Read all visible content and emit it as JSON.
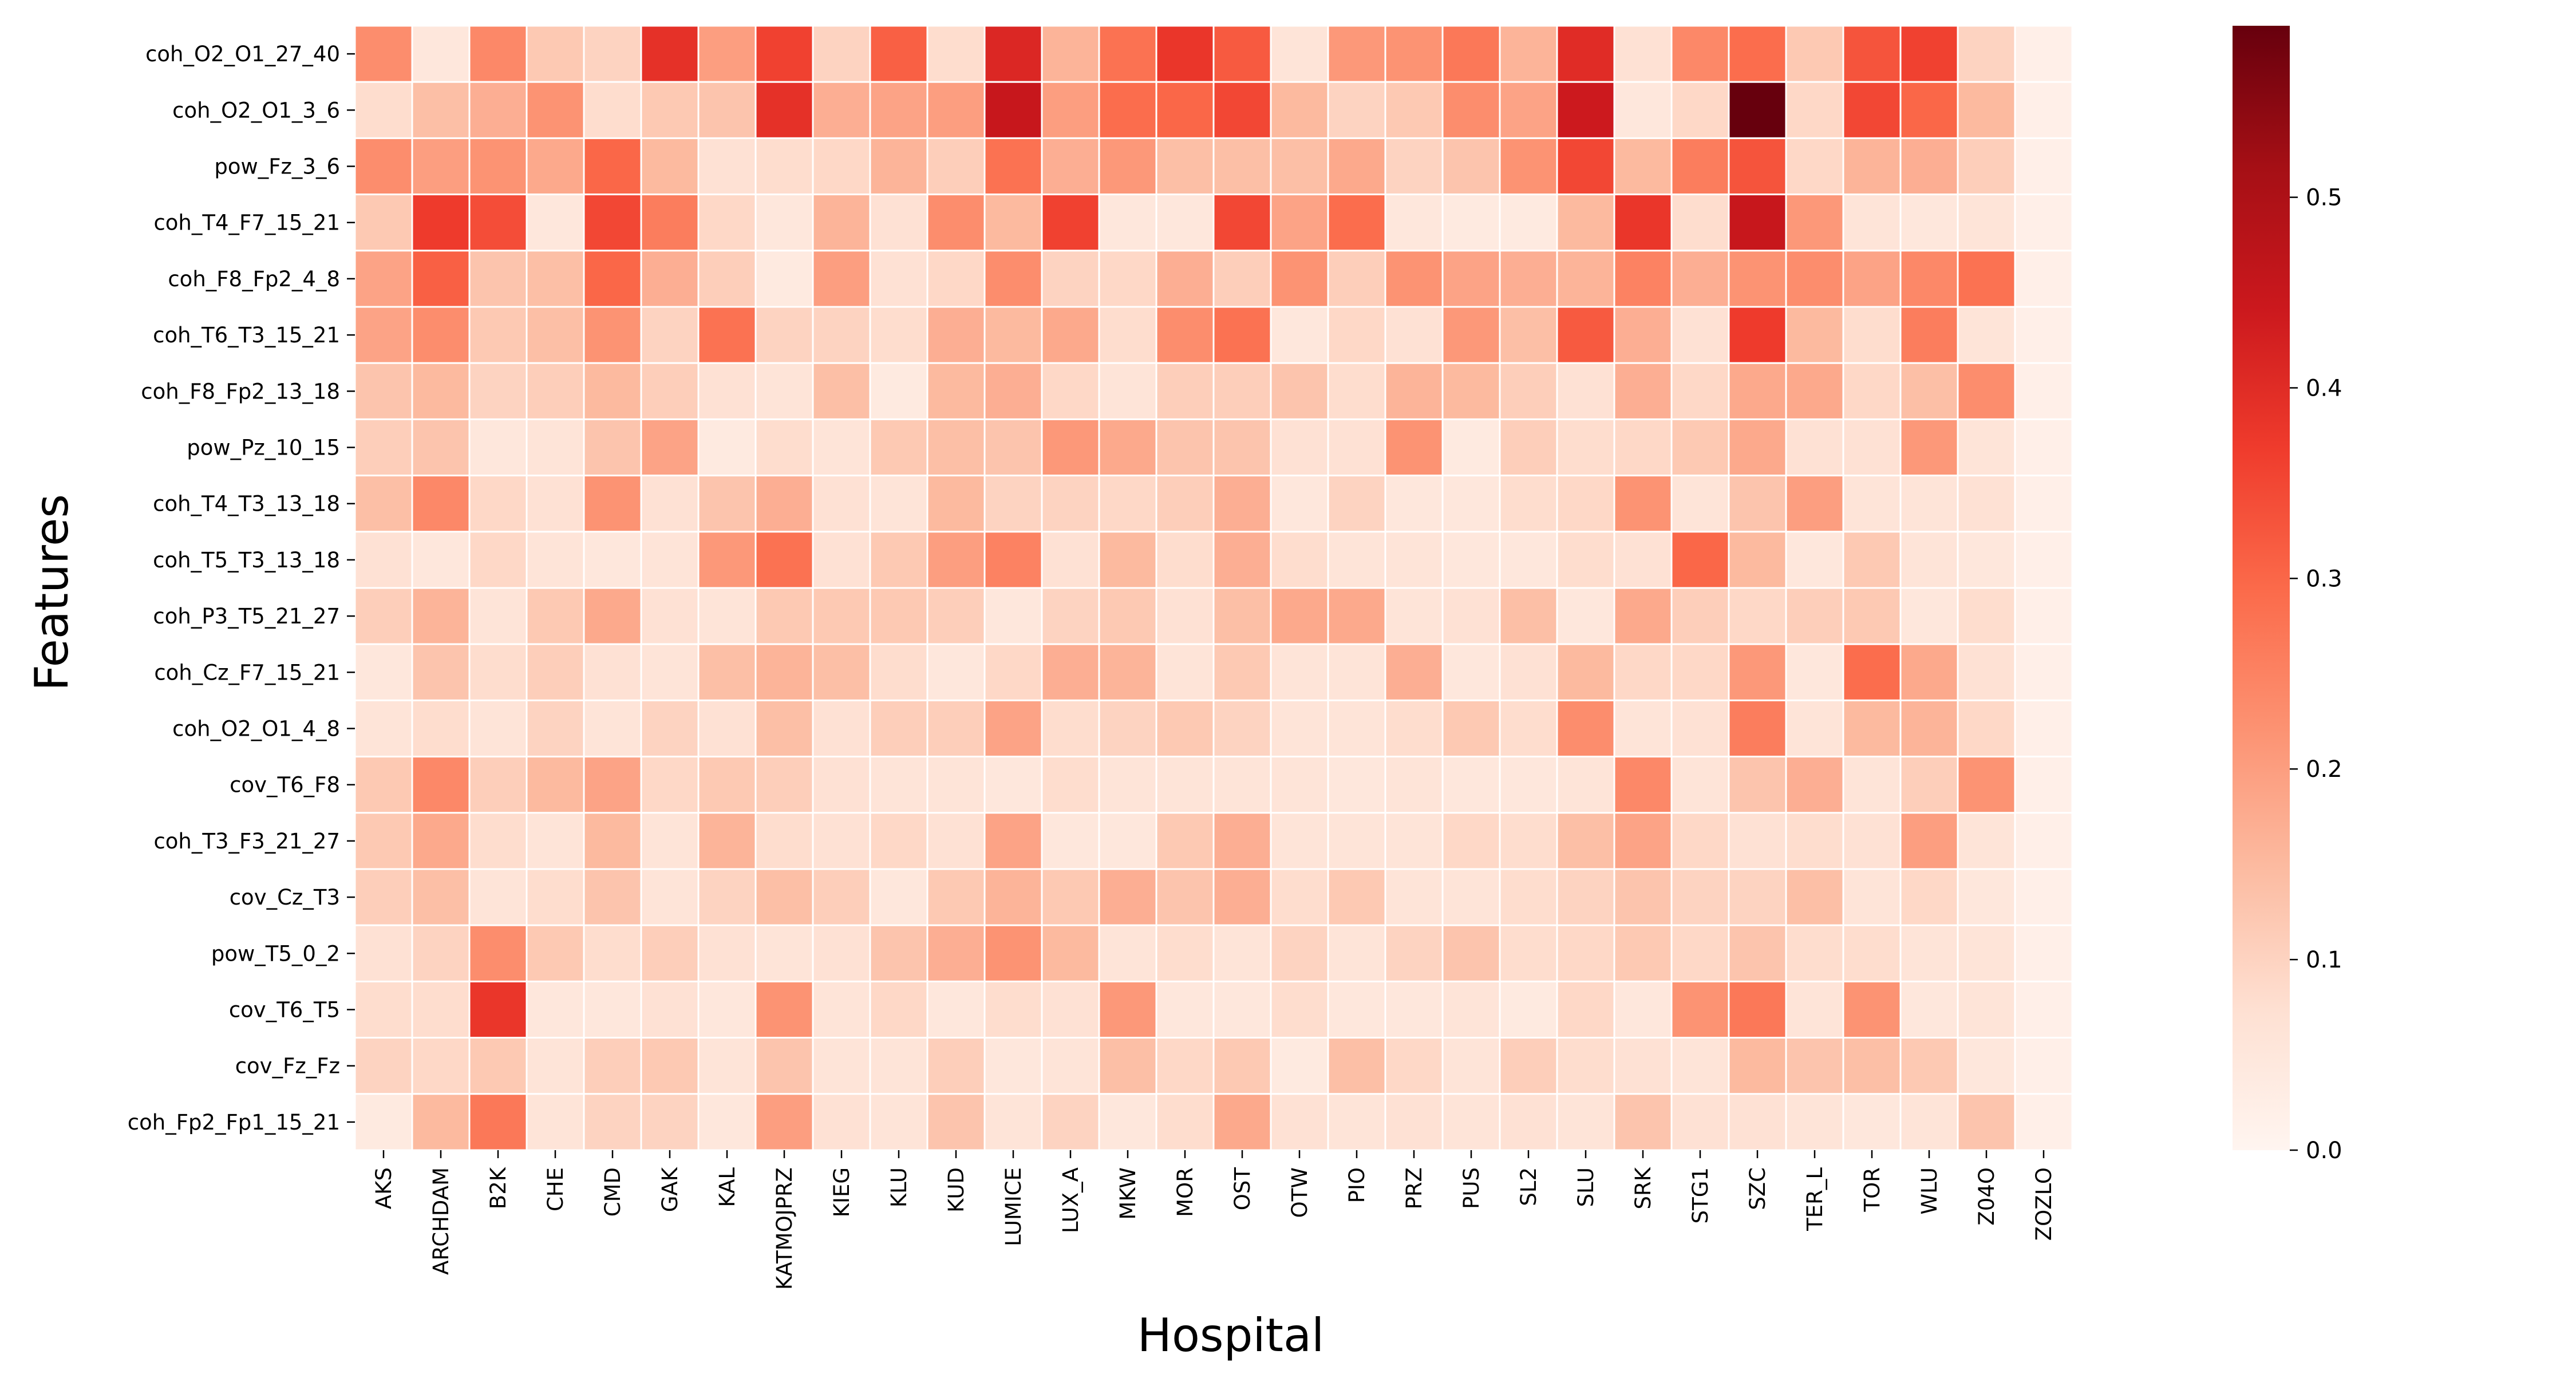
{
  "chart_data": {
    "type": "heatmap",
    "xlabel": "Hospital",
    "ylabel": "Features",
    "colormap": "Reds",
    "vmin": 0,
    "vmax": 0.59,
    "colorbar_ticks": [
      0.0,
      0.1,
      0.2,
      0.3,
      0.4,
      0.5
    ],
    "colorbar_tick_labels": [
      "0.0",
      "0.1",
      "0.2",
      "0.3",
      "0.4",
      "0.5"
    ],
    "x_categories": [
      "AKS",
      "ARCHDAM",
      "B2K",
      "CHE",
      "CMD",
      "GAK",
      "KAL",
      "KATMOJPRZ",
      "KIEG",
      "KLU",
      "KUD",
      "LUMICE",
      "LUX_A",
      "MKW",
      "MOR",
      "OST",
      "OTW",
      "PIO",
      "PRZ",
      "PUS",
      "SL2",
      "SLU",
      "SRK",
      "STG1",
      "SZC",
      "TER_L",
      "TOR",
      "WLU",
      "Z04O",
      "ZOZLO"
    ],
    "y_categories": [
      "coh_O2_O1_27_40",
      "coh_O2_O1_3_6",
      "pow_Fz_3_6",
      "coh_T4_F7_15_21",
      "coh_F8_Fp2_4_8",
      "coh_T6_T3_15_21",
      "coh_F8_Fp2_13_18",
      "pow_Pz_10_15",
      "coh_T4_T3_13_18",
      "coh_T5_T3_13_18",
      "coh_P3_T5_21_27",
      "coh_Cz_F7_15_21",
      "coh_O2_O1_4_8",
      "cov_T6_F8",
      "coh_T3_F3_21_27",
      "cov_Cz_T3",
      "pow_T5_0_2",
      "cov_T6_T5",
      "cov_Fz_Fz",
      "coh_Fp2_Fp1_15_21"
    ],
    "values": [
      [
        0.23,
        0.05,
        0.24,
        0.12,
        0.1,
        0.39,
        0.2,
        0.36,
        0.1,
        0.31,
        0.08,
        0.41,
        0.16,
        0.28,
        0.38,
        0.32,
        0.06,
        0.21,
        0.22,
        0.27,
        0.16,
        0.4,
        0.07,
        0.24,
        0.29,
        0.12,
        0.33,
        0.36,
        0.1,
        0.02
      ],
      [
        0.08,
        0.14,
        0.17,
        0.22,
        0.08,
        0.12,
        0.13,
        0.39,
        0.17,
        0.19,
        0.2,
        0.45,
        0.2,
        0.29,
        0.3,
        0.35,
        0.15,
        0.1,
        0.12,
        0.23,
        0.19,
        0.44,
        0.05,
        0.09,
        0.59,
        0.09,
        0.35,
        0.3,
        0.15,
        0.02
      ],
      [
        0.23,
        0.2,
        0.22,
        0.18,
        0.3,
        0.15,
        0.07,
        0.08,
        0.09,
        0.16,
        0.11,
        0.28,
        0.17,
        0.21,
        0.14,
        0.14,
        0.14,
        0.18,
        0.1,
        0.13,
        0.22,
        0.35,
        0.15,
        0.26,
        0.33,
        0.09,
        0.16,
        0.17,
        0.11,
        0.02
      ],
      [
        0.12,
        0.37,
        0.34,
        0.05,
        0.35,
        0.26,
        0.09,
        0.05,
        0.16,
        0.07,
        0.23,
        0.15,
        0.36,
        0.05,
        0.05,
        0.35,
        0.19,
        0.29,
        0.05,
        0.04,
        0.04,
        0.15,
        0.38,
        0.08,
        0.45,
        0.21,
        0.06,
        0.05,
        0.06,
        0.02
      ],
      [
        0.19,
        0.31,
        0.13,
        0.14,
        0.3,
        0.17,
        0.11,
        0.04,
        0.2,
        0.07,
        0.09,
        0.23,
        0.1,
        0.09,
        0.17,
        0.11,
        0.22,
        0.11,
        0.22,
        0.19,
        0.17,
        0.16,
        0.25,
        0.17,
        0.22,
        0.23,
        0.19,
        0.24,
        0.28,
        0.02
      ],
      [
        0.19,
        0.23,
        0.12,
        0.14,
        0.22,
        0.1,
        0.28,
        0.1,
        0.1,
        0.08,
        0.17,
        0.15,
        0.18,
        0.08,
        0.23,
        0.28,
        0.05,
        0.09,
        0.07,
        0.21,
        0.14,
        0.32,
        0.17,
        0.07,
        0.37,
        0.15,
        0.08,
        0.26,
        0.06,
        0.02
      ],
      [
        0.13,
        0.15,
        0.1,
        0.11,
        0.15,
        0.11,
        0.07,
        0.06,
        0.14,
        0.04,
        0.15,
        0.17,
        0.09,
        0.06,
        0.11,
        0.11,
        0.13,
        0.08,
        0.16,
        0.15,
        0.11,
        0.07,
        0.17,
        0.09,
        0.18,
        0.18,
        0.09,
        0.14,
        0.23,
        0.02
      ],
      [
        0.11,
        0.13,
        0.05,
        0.06,
        0.13,
        0.19,
        0.04,
        0.08,
        0.06,
        0.12,
        0.14,
        0.13,
        0.21,
        0.18,
        0.13,
        0.13,
        0.07,
        0.07,
        0.22,
        0.04,
        0.11,
        0.08,
        0.09,
        0.12,
        0.18,
        0.07,
        0.07,
        0.21,
        0.06,
        0.02
      ],
      [
        0.14,
        0.24,
        0.09,
        0.07,
        0.22,
        0.07,
        0.13,
        0.17,
        0.07,
        0.06,
        0.15,
        0.1,
        0.1,
        0.09,
        0.11,
        0.17,
        0.05,
        0.1,
        0.05,
        0.05,
        0.08,
        0.09,
        0.22,
        0.06,
        0.13,
        0.2,
        0.06,
        0.06,
        0.07,
        0.02
      ],
      [
        0.07,
        0.05,
        0.09,
        0.06,
        0.05,
        0.06,
        0.21,
        0.28,
        0.07,
        0.12,
        0.2,
        0.25,
        0.07,
        0.15,
        0.08,
        0.17,
        0.08,
        0.06,
        0.06,
        0.05,
        0.05,
        0.08,
        0.07,
        0.3,
        0.15,
        0.05,
        0.12,
        0.06,
        0.05,
        0.02
      ],
      [
        0.11,
        0.16,
        0.06,
        0.12,
        0.18,
        0.07,
        0.06,
        0.12,
        0.12,
        0.12,
        0.11,
        0.05,
        0.1,
        0.12,
        0.07,
        0.14,
        0.18,
        0.18,
        0.06,
        0.07,
        0.14,
        0.05,
        0.18,
        0.11,
        0.09,
        0.11,
        0.12,
        0.05,
        0.08,
        0.02
      ],
      [
        0.05,
        0.13,
        0.08,
        0.11,
        0.07,
        0.06,
        0.14,
        0.16,
        0.14,
        0.08,
        0.05,
        0.09,
        0.17,
        0.16,
        0.06,
        0.12,
        0.06,
        0.06,
        0.17,
        0.05,
        0.07,
        0.15,
        0.09,
        0.09,
        0.21,
        0.05,
        0.29,
        0.18,
        0.07,
        0.02
      ],
      [
        0.06,
        0.08,
        0.06,
        0.1,
        0.06,
        0.1,
        0.07,
        0.14,
        0.07,
        0.11,
        0.11,
        0.19,
        0.08,
        0.1,
        0.12,
        0.1,
        0.06,
        0.06,
        0.08,
        0.12,
        0.08,
        0.23,
        0.06,
        0.07,
        0.26,
        0.06,
        0.15,
        0.16,
        0.09,
        0.02
      ],
      [
        0.12,
        0.24,
        0.11,
        0.15,
        0.19,
        0.09,
        0.12,
        0.11,
        0.07,
        0.06,
        0.06,
        0.05,
        0.08,
        0.06,
        0.06,
        0.06,
        0.06,
        0.05,
        0.06,
        0.05,
        0.05,
        0.06,
        0.24,
        0.06,
        0.13,
        0.17,
        0.06,
        0.11,
        0.22,
        0.02
      ],
      [
        0.12,
        0.18,
        0.08,
        0.06,
        0.15,
        0.06,
        0.16,
        0.08,
        0.07,
        0.09,
        0.07,
        0.19,
        0.05,
        0.05,
        0.12,
        0.17,
        0.06,
        0.06,
        0.06,
        0.09,
        0.08,
        0.14,
        0.19,
        0.09,
        0.07,
        0.08,
        0.07,
        0.2,
        0.06,
        0.02
      ],
      [
        0.11,
        0.14,
        0.06,
        0.08,
        0.13,
        0.06,
        0.1,
        0.14,
        0.11,
        0.05,
        0.12,
        0.16,
        0.12,
        0.17,
        0.13,
        0.17,
        0.08,
        0.12,
        0.06,
        0.06,
        0.08,
        0.1,
        0.13,
        0.1,
        0.1,
        0.14,
        0.06,
        0.09,
        0.05,
        0.02
      ],
      [
        0.07,
        0.1,
        0.23,
        0.12,
        0.08,
        0.11,
        0.07,
        0.06,
        0.07,
        0.13,
        0.17,
        0.22,
        0.15,
        0.06,
        0.08,
        0.06,
        0.1,
        0.06,
        0.1,
        0.13,
        0.08,
        0.09,
        0.12,
        0.09,
        0.13,
        0.08,
        0.08,
        0.06,
        0.06,
        0.02
      ],
      [
        0.08,
        0.08,
        0.38,
        0.05,
        0.05,
        0.07,
        0.05,
        0.22,
        0.06,
        0.09,
        0.05,
        0.08,
        0.07,
        0.21,
        0.05,
        0.05,
        0.08,
        0.05,
        0.05,
        0.06,
        0.04,
        0.09,
        0.05,
        0.22,
        0.27,
        0.06,
        0.22,
        0.05,
        0.06,
        0.02
      ],
      [
        0.1,
        0.09,
        0.12,
        0.06,
        0.11,
        0.12,
        0.06,
        0.13,
        0.06,
        0.06,
        0.11,
        0.05,
        0.06,
        0.14,
        0.09,
        0.12,
        0.04,
        0.14,
        0.09,
        0.06,
        0.11,
        0.08,
        0.07,
        0.06,
        0.15,
        0.13,
        0.14,
        0.12,
        0.05,
        0.02
      ],
      [
        0.04,
        0.15,
        0.27,
        0.06,
        0.1,
        0.1,
        0.05,
        0.2,
        0.07,
        0.06,
        0.13,
        0.06,
        0.1,
        0.05,
        0.08,
        0.18,
        0.07,
        0.06,
        0.07,
        0.06,
        0.07,
        0.06,
        0.13,
        0.07,
        0.07,
        0.06,
        0.05,
        0.06,
        0.13,
        0.02
      ]
    ]
  }
}
